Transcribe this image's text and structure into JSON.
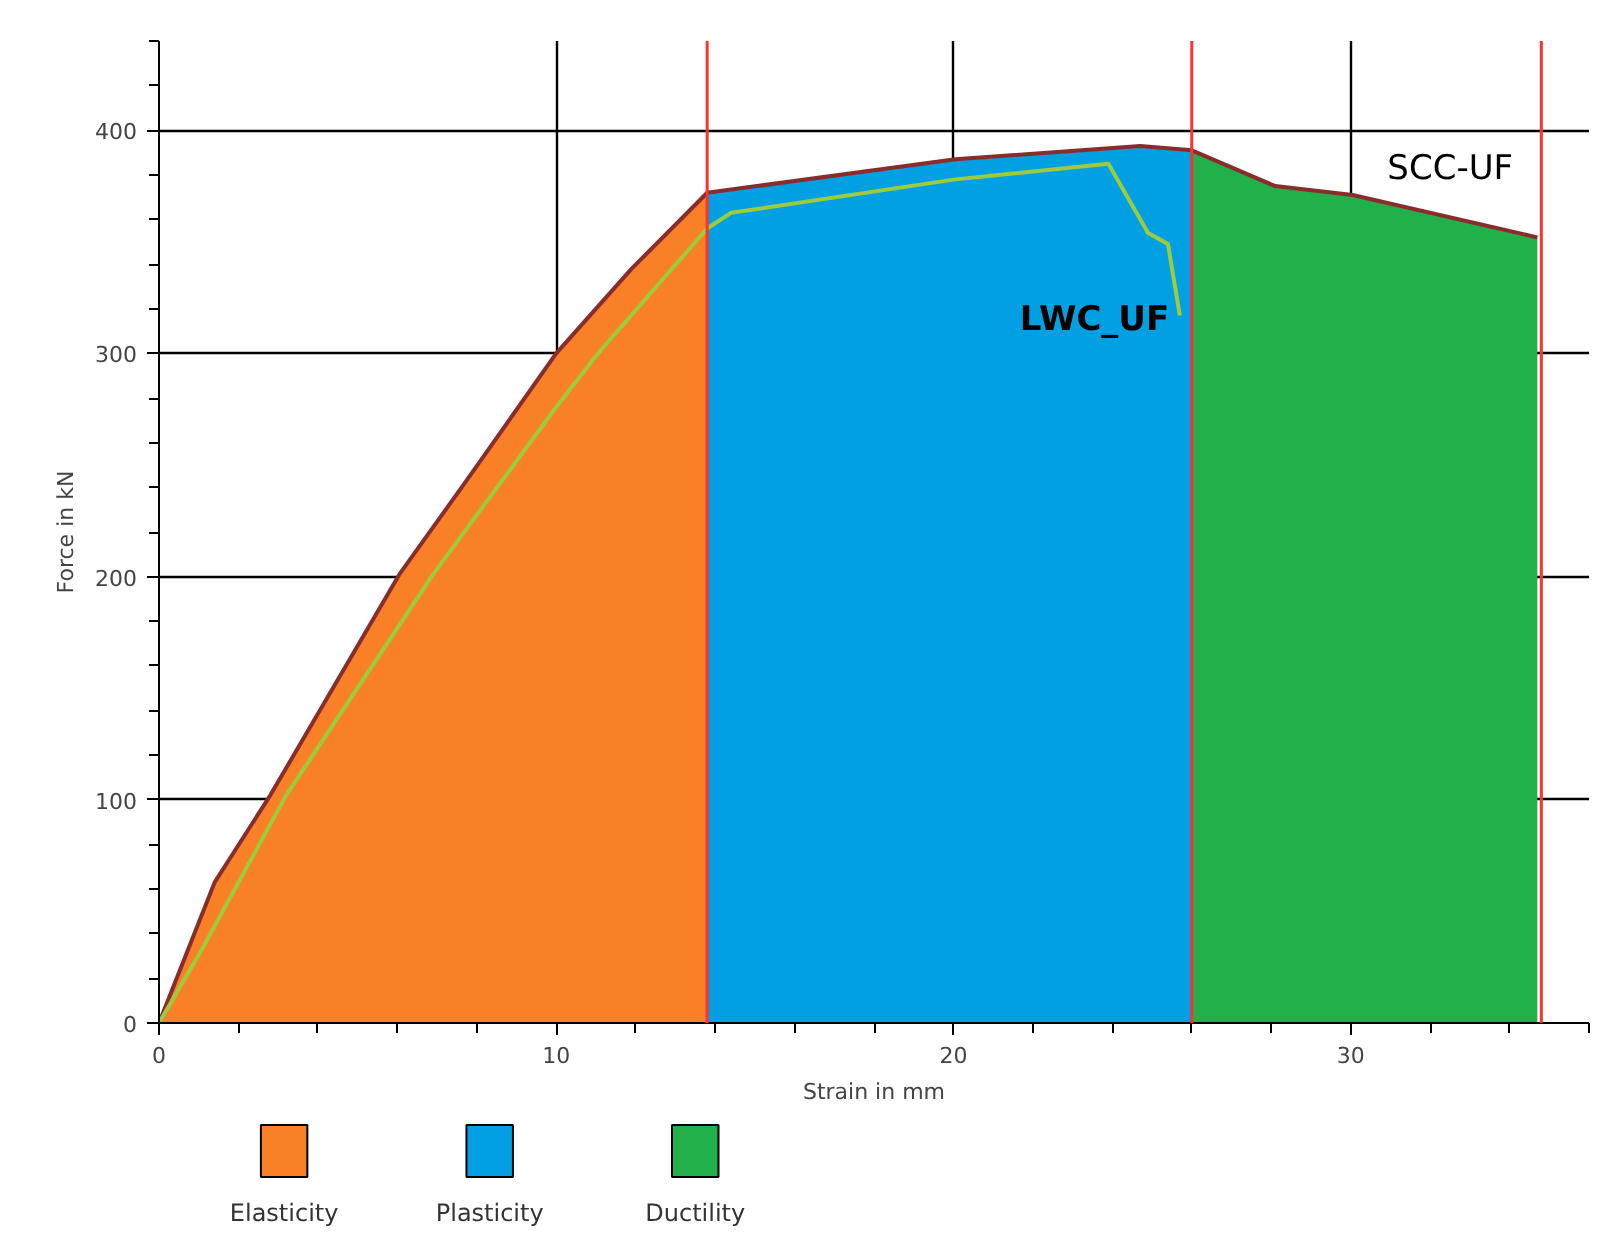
{
  "chart_data": {
    "type": "area",
    "xlabel": "Strain in mm",
    "ylabel": "Force in kN",
    "xlim": [
      0,
      36
    ],
    "ylim": [
      0,
      440
    ],
    "xticks": [
      0,
      10,
      20,
      30
    ],
    "yticks": [
      0,
      100,
      200,
      300,
      400
    ],
    "grid": true,
    "legend": "bottom left",
    "series": [
      {
        "name": "Elasticity",
        "color": "#f98026",
        "x": [
          0,
          1.4,
          2.8,
          6.05,
          7.7,
          10.0,
          11.9,
          13.8
        ],
        "values": [
          0,
          63,
          102,
          201,
          242,
          300,
          338,
          372
        ]
      },
      {
        "name": "Plasticity",
        "color": "#00a0e3",
        "x": [
          13.8,
          20.05,
          24.7,
          26.0
        ],
        "values": [
          372,
          387,
          393,
          391
        ]
      },
      {
        "name": "Ductility",
        "color": "#22b04b",
        "x": [
          26.0,
          28.1,
          30.05,
          34.7
        ],
        "values": [
          391,
          375,
          371,
          352
        ]
      },
      {
        "type": "line",
        "name": "SCC-UF",
        "color": "#8b2c2c",
        "x": [
          0,
          1.4,
          2.8,
          6.05,
          7.7,
          10.0,
          11.9,
          13.8,
          20.05,
          24.7,
          26.0,
          28.1,
          30.05,
          34.7
        ],
        "values": [
          0,
          63,
          102,
          201,
          242,
          300,
          338,
          372,
          387,
          393,
          391,
          375,
          371,
          352
        ]
      },
      {
        "type": "line",
        "name": "LWC_UF",
        "color": "#9ccc3c",
        "x": [
          0,
          1.05,
          3.2,
          6.9,
          10.0,
          11.05,
          13.8,
          14.4,
          20.05,
          23.9,
          24.9,
          25.4,
          25.7
        ],
        "values": [
          0,
          32,
          102,
          201,
          276,
          300,
          356,
          363,
          378,
          385,
          354,
          349,
          317
        ]
      }
    ],
    "ref_lines": [
      {
        "axis": "x",
        "value": 13.8,
        "color": "#ff3030"
      },
      {
        "axis": "x",
        "value": 26.0,
        "color": "#ff3030"
      },
      {
        "axis": "x",
        "value": 34.8,
        "color": "#ff3030"
      }
    ]
  }
}
